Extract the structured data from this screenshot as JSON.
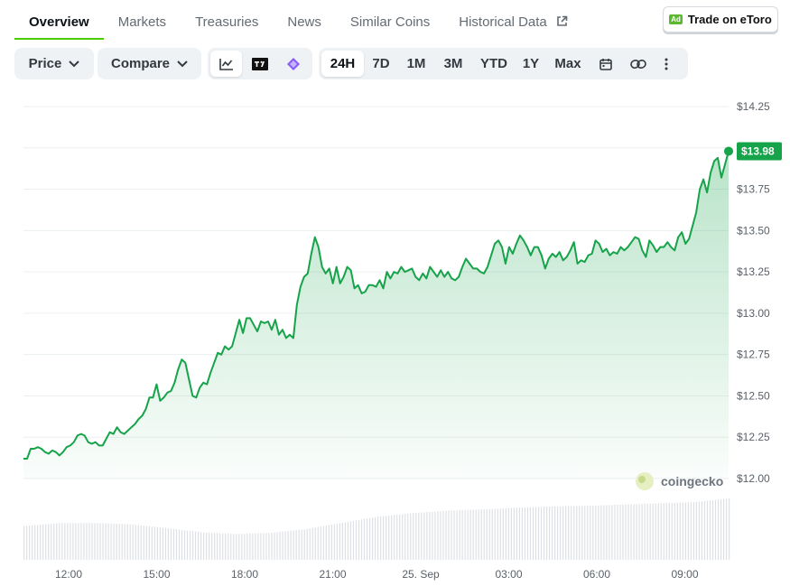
{
  "tabs": [
    {
      "label": "Overview",
      "active": true
    },
    {
      "label": "Markets",
      "active": false
    },
    {
      "label": "Treasuries",
      "active": false
    },
    {
      "label": "News",
      "active": false
    },
    {
      "label": "Similar Coins",
      "active": false
    },
    {
      "label": "Historical Data",
      "active": false
    }
  ],
  "ad_button": {
    "badge": "Ad",
    "label": "Trade on eToro"
  },
  "toolbar": {
    "price_label": "Price",
    "compare_label": "Compare",
    "ranges": [
      "24H",
      "7D",
      "1M",
      "3M",
      "YTD",
      "1Y",
      "Max"
    ],
    "selected_range": "24H"
  },
  "icons": {
    "line_chart": "line-chart-icon",
    "tradingview": "tradingview-icon",
    "diamond": "diamond-icon",
    "calendar": "calendar-icon",
    "link": "link-icon",
    "more": "more-vertical-icon",
    "external": "external-link-icon"
  },
  "colors": {
    "accent": "#4bcc00",
    "line": "#16a34a",
    "price_tag": "#16a34a"
  },
  "watermark": "coingecko",
  "chart_data": {
    "type": "area",
    "series": [
      {
        "values": [
          12.12,
          12.12,
          12.18,
          12.18,
          12.19,
          12.18,
          12.16,
          12.15,
          12.17,
          12.16,
          12.14,
          12.16,
          12.19,
          12.2,
          12.22,
          12.26,
          12.27,
          12.26,
          12.22,
          12.21,
          12.22,
          12.2,
          12.2,
          12.24,
          12.28,
          12.27,
          12.31,
          12.28,
          12.27,
          12.29,
          12.31,
          12.33,
          12.36,
          12.38,
          12.42,
          12.49,
          12.49,
          12.57,
          12.47,
          12.49,
          12.52,
          12.53,
          12.58,
          12.66,
          12.72,
          12.7,
          12.6,
          12.5,
          12.49,
          12.55,
          12.58,
          12.57,
          12.64,
          12.7,
          12.76,
          12.75,
          12.8,
          12.78,
          12.8,
          12.88,
          12.96,
          12.88,
          12.97,
          12.97,
          12.93,
          12.89,
          12.95,
          12.94,
          12.95,
          12.9,
          12.96,
          12.87,
          12.9,
          12.85,
          12.87,
          12.85,
          13.05,
          13.16,
          13.22,
          13.24,
          13.36,
          13.46,
          13.4,
          13.28,
          13.24,
          13.27,
          13.18,
          13.28,
          13.18,
          13.22,
          13.28,
          13.26,
          13.15,
          13.17,
          13.12,
          13.13,
          13.17,
          13.17,
          13.16,
          13.2,
          13.15,
          13.25,
          13.21,
          13.25,
          13.24,
          13.28,
          13.25,
          13.26,
          13.27,
          13.22,
          13.2,
          13.24,
          13.21,
          13.28,
          13.25,
          13.22,
          13.26,
          13.22,
          13.25,
          13.21,
          13.2,
          13.22,
          13.28,
          13.33,
          13.3,
          13.27,
          13.27,
          13.25,
          13.24,
          13.28,
          13.35,
          13.42,
          13.44,
          13.4,
          13.3,
          13.4,
          13.36,
          13.42,
          13.47,
          13.44,
          13.4,
          13.35,
          13.4,
          13.4,
          13.35,
          13.27,
          13.33,
          13.36,
          13.34,
          13.37,
          13.32,
          13.34,
          13.38,
          13.43,
          13.3,
          13.32,
          13.31,
          13.35,
          13.36,
          13.44,
          13.42,
          13.37,
          13.39,
          13.35,
          13.37,
          13.36,
          13.4,
          13.38,
          13.4,
          13.43,
          13.46,
          13.45,
          13.38,
          13.34,
          13.44,
          13.41,
          13.37,
          13.4,
          13.4,
          13.43,
          13.4,
          13.38,
          13.46,
          13.49,
          13.42,
          13.45,
          13.53,
          13.61,
          13.75,
          13.81,
          13.73,
          13.85,
          13.92,
          13.94,
          13.82,
          13.9,
          13.98
        ]
      }
    ],
    "y_ticks": [
      "$14.25",
      "$14.00",
      "$13.75",
      "$13.50",
      "$13.25",
      "$13.00",
      "$12.75",
      "$12.50",
      "$12.25",
      "$12.00"
    ],
    "x_ticks": [
      "12:00",
      "15:00",
      "18:00",
      "21:00",
      "25. Sep",
      "03:00",
      "06:00",
      "09:00"
    ],
    "ylim": [
      12.0,
      14.25
    ],
    "current_price_label": "$13.98",
    "volume": [
      0.55,
      0.6,
      0.6,
      0.58,
      0.52,
      0.45,
      0.42,
      0.44,
      0.5,
      0.6,
      0.7,
      0.76,
      0.8,
      0.82,
      0.85,
      0.87,
      0.88,
      0.9,
      0.92,
      0.94,
      1.0
    ],
    "grid": true
  }
}
